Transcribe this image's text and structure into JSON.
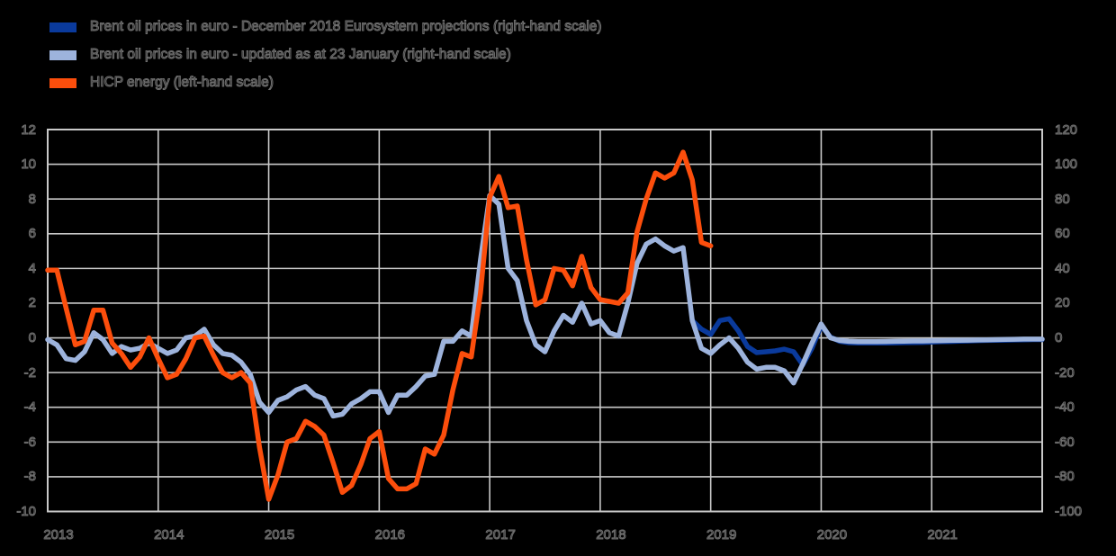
{
  "legend": {
    "items": [
      {
        "id": "brent-dec2018-projections",
        "label": "Brent oil prices in euro - December 2018 Eurosystem projections (right-hand scale)",
        "color": "#0a3a9c"
      },
      {
        "id": "brent-updated-23jan",
        "label": "Brent oil prices in euro - updated as at 23 January (right-hand scale)",
        "color": "#9db3dc"
      },
      {
        "id": "hicp-energy",
        "label": "HICP energy (left-hand scale)",
        "color": "#fc4e0c"
      }
    ]
  },
  "colors": {
    "background": "#000000",
    "grid": "#c9c9c9",
    "frame": "#c9c9c9"
  },
  "chart_data": {
    "type": "line",
    "title": "",
    "x_start": "2013-01",
    "x_end": "2021-12",
    "x_total_months": 108,
    "x_tick_labels": [
      "2013",
      "2014",
      "2015",
      "2016",
      "2017",
      "2018",
      "2019",
      "2020",
      "2021"
    ],
    "left_axis": {
      "range": [
        -10,
        12
      ],
      "ticks": [
        12,
        10,
        8,
        6,
        4,
        2,
        0,
        -2,
        -4,
        -6,
        -8,
        -10
      ],
      "tick_labels": [
        "12",
        "10",
        "8",
        "6",
        "4",
        "2",
        "0",
        "-2",
        "-4",
        "-6",
        "-8",
        "-10"
      ]
    },
    "right_axis": {
      "range": [
        -100,
        120
      ],
      "ticks": [
        120,
        100,
        80,
        60,
        40,
        20,
        0,
        -20,
        -40,
        -60,
        -80,
        -100
      ],
      "tick_labels": [
        "120",
        "100",
        "80",
        "60",
        "40",
        "20",
        "0",
        "-20",
        "-40",
        "-60",
        "-80",
        "-100"
      ]
    },
    "grid": true,
    "legend_position": "top-left",
    "series": [
      {
        "id": "brent-dec2018-projections",
        "name": "Brent oil prices in euro - December 2018 Eurosystem projections",
        "axis": "right",
        "color": "#0a3a9c",
        "x_offset_months": 70,
        "values": [
          10,
          5,
          2,
          10,
          11,
          4,
          -5,
          -8.5,
          -8,
          -7.5,
          -6.5,
          -8,
          -15.5,
          -6,
          7,
          0.5,
          -2,
          -2.8,
          -3,
          -3,
          -3,
          -3,
          -2.9,
          -2.8,
          -2.7,
          -2.6,
          -2.4,
          -2.2,
          -2.1,
          -1.9,
          -1.8,
          -1.6,
          -1.5,
          -1.4,
          -1.3,
          -1.2,
          -1.1,
          -1.0,
          -1.0
        ]
      },
      {
        "id": "brent-updated-23jan",
        "name": "Brent oil prices in euro - updated as at 23 January",
        "axis": "right",
        "color": "#9db3dc",
        "x_offset_months": 0,
        "values": [
          -1,
          -4,
          -12,
          -13,
          -8,
          3,
          -1,
          -9,
          -5,
          -7,
          -6,
          -3,
          -6,
          -9,
          -7,
          0,
          1,
          5,
          -4,
          -9,
          -10,
          -14,
          -21,
          -37,
          -43,
          -36,
          -34,
          -30,
          -28,
          -33,
          -35,
          -45,
          -44,
          -38,
          -35,
          -31,
          -31,
          -43,
          -33,
          -33,
          -28,
          -22,
          -21,
          -2,
          -2,
          4,
          1,
          45,
          82,
          77,
          40,
          33,
          10,
          -4,
          -8,
          4,
          13,
          9,
          20,
          8,
          10,
          3,
          1,
          20,
          43,
          54,
          57,
          53,
          50,
          52,
          10,
          -6,
          -9,
          -4,
          0,
          -6,
          -14,
          -18,
          -17,
          -17,
          -19,
          -26,
          -15,
          -3,
          8,
          0,
          -1.5,
          -2,
          -2.2,
          -2.2,
          -2.2,
          -2.1,
          -2,
          -1.9,
          -1.8,
          -1.8,
          -1.7,
          -1.6,
          -1.5,
          -1.4,
          -1.3,
          -1.2,
          -1.1,
          -1.0,
          -0.9,
          -0.8,
          -0.7,
          -0.7,
          -0.7
        ]
      },
      {
        "id": "hicp-energy",
        "name": "HICP energy",
        "axis": "left",
        "color": "#fc4e0c",
        "x_offset_months": 0,
        "values": [
          3.9,
          3.9,
          1.7,
          -0.4,
          -0.2,
          1.6,
          1.6,
          -0.3,
          -0.9,
          -1.7,
          -1.1,
          0.0,
          -1.2,
          -2.3,
          -2.1,
          -1.2,
          0.0,
          0.1,
          -1.0,
          -2.0,
          -2.3,
          -2.0,
          -2.6,
          -6.3,
          -9.3,
          -7.9,
          -6.0,
          -5.8,
          -4.8,
          -5.1,
          -5.6,
          -7.2,
          -8.9,
          -8.5,
          -7.3,
          -5.8,
          -5.4,
          -8.1,
          -8.7,
          -8.7,
          -8.4,
          -6.4,
          -6.7,
          -5.6,
          -3.0,
          -0.9,
          -1.1,
          2.6,
          8.1,
          9.3,
          7.5,
          7.6,
          4.5,
          1.9,
          2.2,
          4.0,
          3.9,
          3.0,
          4.7,
          2.9,
          2.2,
          2.1,
          2.0,
          2.6,
          6.1,
          8.0,
          9.5,
          9.2,
          9.5,
          10.7,
          9.1,
          5.5,
          5.3
        ]
      }
    ]
  }
}
